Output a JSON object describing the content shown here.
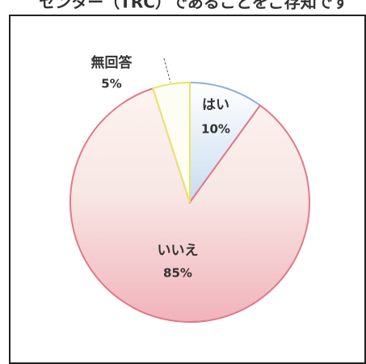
{
  "chart_data": {
    "type": "pie",
    "title": "センター（TRC）であることをご存知です",
    "categories": [
      "はい",
      "いいえ",
      "無回答"
    ],
    "values": [
      10,
      85,
      5
    ],
    "value_labels": [
      "10%",
      "85%",
      "5%"
    ],
    "colors": [
      "#c9dcef",
      "#f1b3bb",
      "#fdfdf4"
    ],
    "edge_colors": [
      "#8fb0d8",
      "#e07a88",
      "#e6e66a"
    ]
  }
}
